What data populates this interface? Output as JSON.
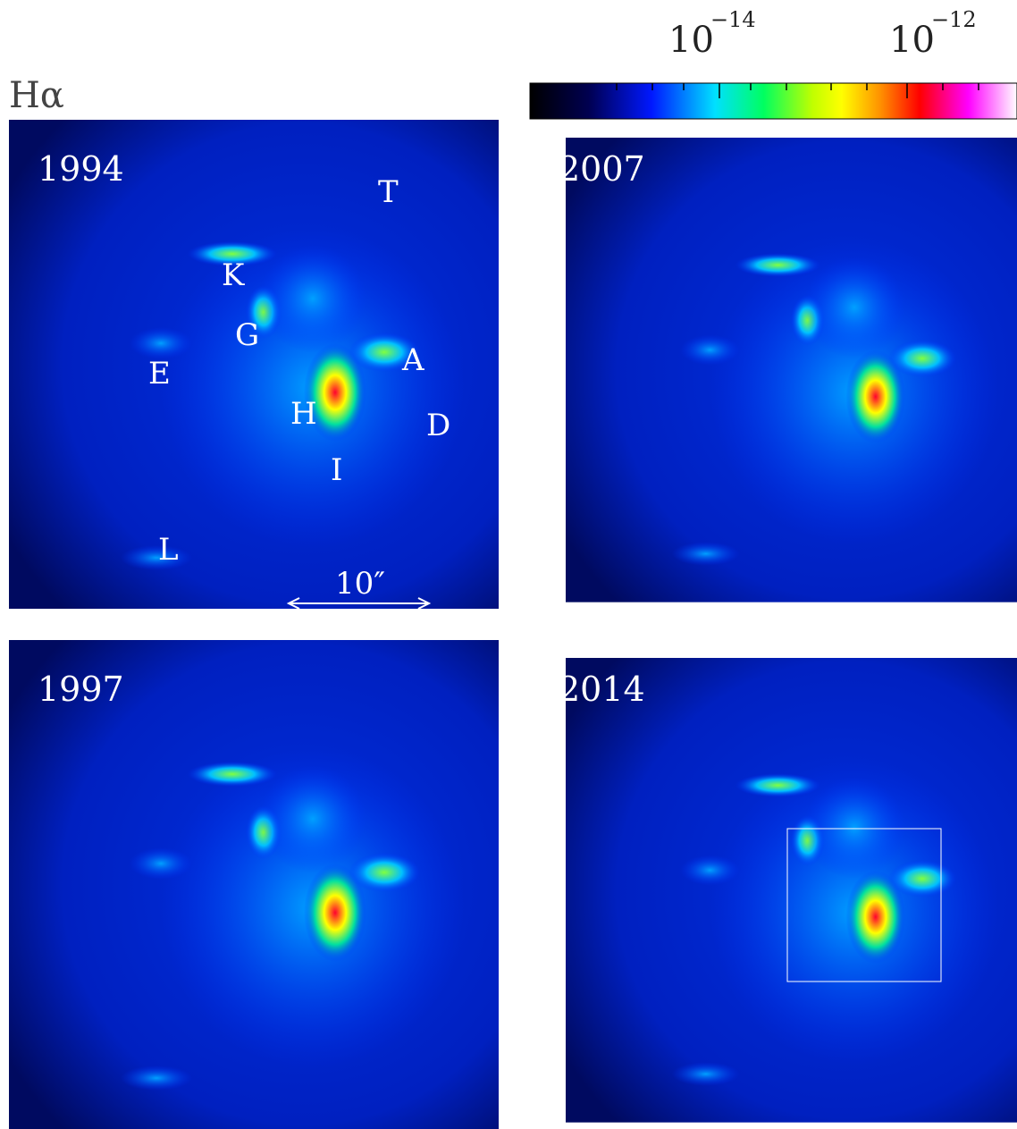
{
  "header": {
    "title": "Hα"
  },
  "colorbar": {
    "labels": [
      {
        "base": "10",
        "exponent": "−14"
      },
      {
        "base": "10",
        "exponent": "−12"
      }
    ]
  },
  "panels": [
    {
      "year": "1994",
      "features": [
        "T",
        "K",
        "G",
        "E",
        "A",
        "H",
        "D",
        "I",
        "L"
      ],
      "scale_bar": "10″"
    },
    {
      "year": "2007"
    },
    {
      "year": "1997"
    },
    {
      "year": "2014"
    }
  ]
}
